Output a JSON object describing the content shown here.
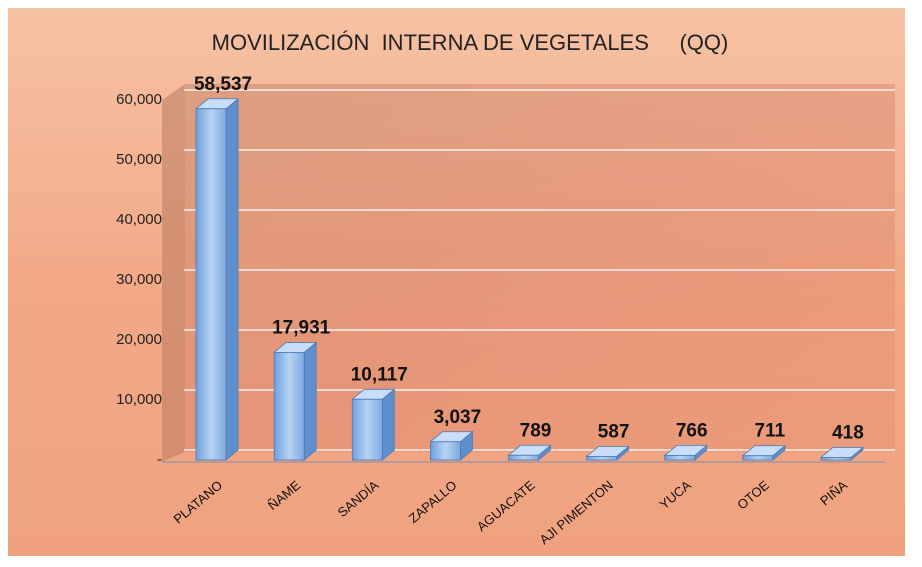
{
  "chart_data": {
    "type": "bar3d",
    "title": "MOVILIZACIÓN  INTERNA DE VEGETALES     (QQ)",
    "categories": [
      "PLATANO",
      "ÑAME",
      "SANDÍA",
      "ZAPALLO",
      "AGUACATE",
      "AJI PIMENTON",
      "YUCA",
      "OTOE",
      "PIÑA"
    ],
    "values": [
      58537,
      17931,
      10117,
      3037,
      789,
      587,
      766,
      711,
      418
    ],
    "value_labels": [
      "58,537",
      "17,931",
      "10,117",
      "3,037",
      "789",
      "587",
      "766",
      "711",
      "418"
    ],
    "color": "#8fb8e8",
    "ylim": [
      0,
      60000
    ],
    "yticks": [
      {
        "value": 0,
        "label": "-"
      },
      {
        "value": 10000,
        "label": "10,000"
      },
      {
        "value": 20000,
        "label": "20,000"
      },
      {
        "value": 30000,
        "label": "30,000"
      },
      {
        "value": 40000,
        "label": "40,000"
      },
      {
        "value": 50000,
        "label": "50,000"
      },
      {
        "value": 60000,
        "label": "60,000"
      }
    ],
    "grid": true
  }
}
